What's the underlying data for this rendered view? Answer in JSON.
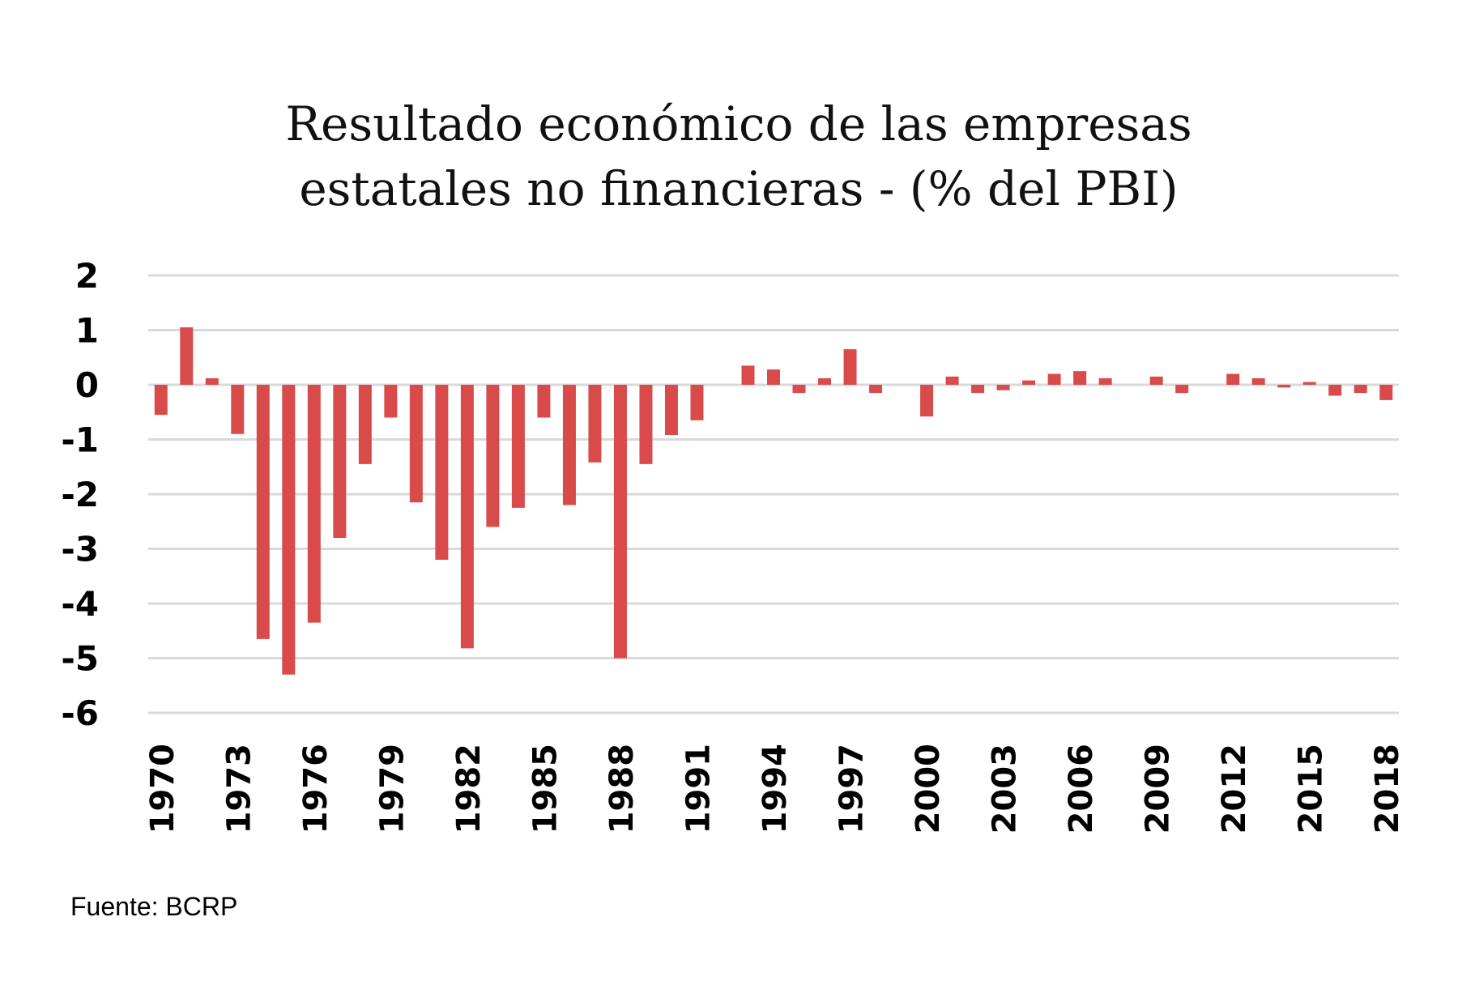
{
  "chart_data": {
    "type": "bar",
    "title_lines": [
      "Resultado económico de las empresas",
      "estatales no financieras - (% del PBI)"
    ],
    "xlabel": "",
    "ylabel": "",
    "ylim": [
      -6,
      2
    ],
    "y_ticks": [
      "2",
      "1",
      "0",
      "-1",
      "-2",
      "-3",
      "-4",
      "-5",
      "-6"
    ],
    "grid": true,
    "bar_color": "#d94b4b",
    "categories": [
      1970,
      1971,
      1972,
      1973,
      1974,
      1975,
      1976,
      1977,
      1978,
      1979,
      1980,
      1981,
      1982,
      1983,
      1984,
      1985,
      1986,
      1987,
      1988,
      1989,
      1990,
      1991,
      1992,
      1993,
      1994,
      1995,
      1996,
      1997,
      1998,
      1999,
      2000,
      2001,
      2002,
      2003,
      2004,
      2005,
      2006,
      2007,
      2008,
      2009,
      2010,
      2011,
      2012,
      2013,
      2014,
      2015,
      2016,
      2017,
      2018
    ],
    "x_tick_labels": [
      "1970",
      "1973",
      "1976",
      "1979",
      "1982",
      "1985",
      "1988",
      "1991",
      "1994",
      "1997",
      "2000",
      "2003",
      "2006",
      "2009",
      "2012",
      "2015",
      "2018"
    ],
    "series": [
      {
        "name": "Resultado económico",
        "values": [
          -0.55,
          1.05,
          0.12,
          -0.9,
          -4.65,
          -5.3,
          -4.35,
          -2.8,
          -1.45,
          -0.6,
          -2.15,
          -3.2,
          -4.82,
          -2.6,
          -2.25,
          -0.6,
          -2.2,
          -1.42,
          -5.0,
          -1.45,
          -0.92,
          -0.65,
          0.0,
          0.35,
          0.28,
          -0.15,
          0.12,
          0.65,
          -0.15,
          0.0,
          -0.58,
          0.15,
          -0.15,
          -0.1,
          0.08,
          0.2,
          0.25,
          0.12,
          0.0,
          0.15,
          -0.15,
          0.0,
          0.2,
          0.12,
          -0.05,
          0.05,
          -0.2,
          -0.15,
          -0.28
        ]
      }
    ]
  },
  "source": "Fuente: BCRP"
}
